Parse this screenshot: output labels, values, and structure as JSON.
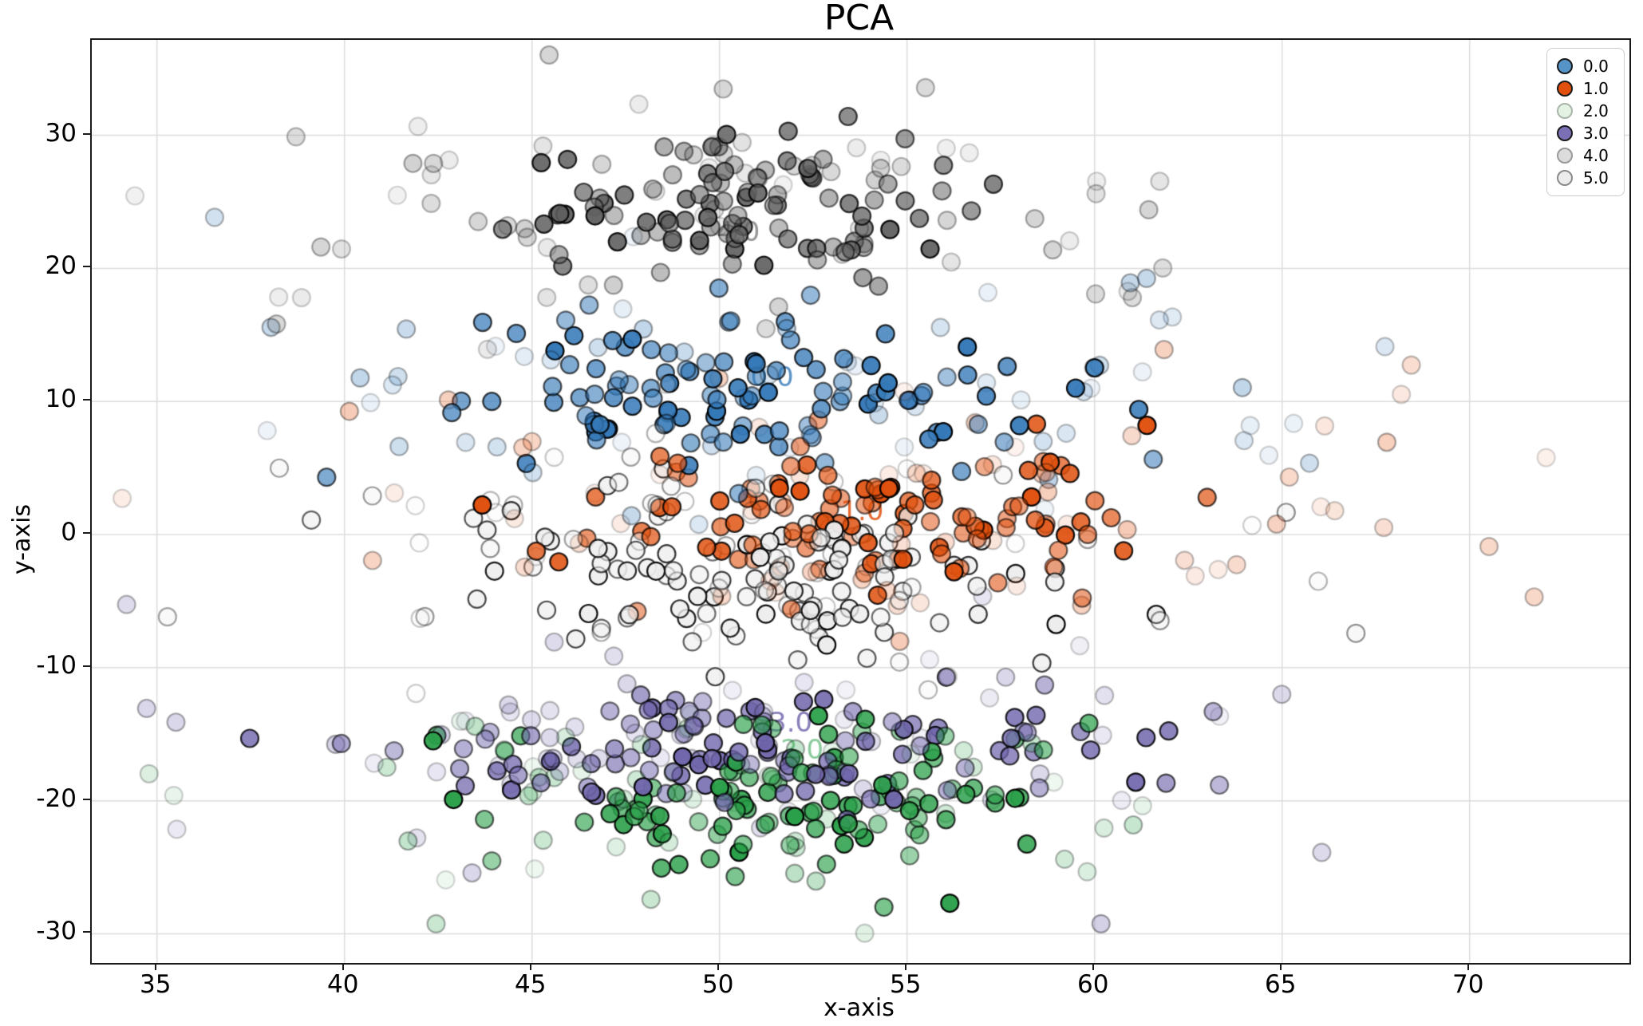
{
  "figure": {
    "title": "PCA"
  },
  "axes": {
    "xlabel": "x-axis",
    "ylabel": "y-axis"
  },
  "chart_data": {
    "type": "scatter",
    "title": "PCA",
    "xlabel": "x-axis",
    "ylabel": "y-axis",
    "xlim": [
      33.26,
      74.26
    ],
    "ylim": [
      -32.19,
      37.17
    ],
    "xticks": [
      35,
      40,
      45,
      50,
      55,
      60,
      65,
      70
    ],
    "yticks": [
      -30,
      -20,
      -10,
      0,
      10,
      20,
      30
    ],
    "grid": true,
    "grid_color": "#dcdcdc",
    "marker": {
      "radius": 11,
      "edge_color": "#000000",
      "edge_width": 2.2
    },
    "seed": 7,
    "legend": {
      "position": "upper right",
      "entries": [
        {
          "label": "0.0",
          "swatch": "#5693c6",
          "swatch_edge": "#1a1a1a"
        },
        {
          "label": "1.0",
          "swatch": "#e2500e",
          "swatch_edge": "#1a1a1a"
        },
        {
          "label": "2.0",
          "swatch": "#e3f2e3",
          "swatch_edge": "#a8b5a8"
        },
        {
          "label": "3.0",
          "swatch": "#7b70b5",
          "swatch_edge": "#1a1a1a"
        },
        {
          "label": "4.0",
          "swatch": "#dcdcdc",
          "swatch_edge": "#9a9a9a"
        },
        {
          "label": "5.0",
          "swatch": "#ececec",
          "swatch_edge": "#8a8a8a"
        }
      ]
    },
    "clusters": [
      {
        "label": "0.0",
        "color": "#3579b8",
        "annotation": {
          "text": "0.0",
          "x": 51.4,
          "y": 11.7,
          "color": "#3579b8",
          "alpha": 0.8
        },
        "core": {
          "n": 115,
          "cx": 51.0,
          "cy": 10.3,
          "sx": 4.2,
          "sy": 2.9,
          "amin": 0.45,
          "amax": 1.0
        },
        "halo": {
          "n": 60,
          "cx": 52.0,
          "cy": 10.8,
          "sx": 8.3,
          "sy": 4.8,
          "amin": 0.07,
          "amax": 0.32
        }
      },
      {
        "label": "1.0",
        "color": "#e0500e",
        "annotation": {
          "text": "1.0",
          "x": 53.8,
          "y": 1.6,
          "color": "#e0500e",
          "alpha": 0.85
        },
        "core": {
          "n": 110,
          "cx": 54.6,
          "cy": 1.3,
          "sx": 3.9,
          "sy": 3.1,
          "amin": 0.45,
          "amax": 1.0
        },
        "halo": {
          "n": 70,
          "cx": 56.5,
          "cy": 2.2,
          "sx": 10.5,
          "sy": 5.0,
          "amin": 0.07,
          "amax": 0.3
        }
      },
      {
        "label": "2.0",
        "color": "#2ba04a",
        "annotation": {
          "text": "2.0",
          "x": 52.2,
          "y": -16.3,
          "color": "#2ba04a",
          "alpha": 0.55
        },
        "core": {
          "n": 110,
          "cx": 52.4,
          "cy": -20.3,
          "sx": 3.7,
          "sy": 3.2,
          "amin": 0.45,
          "amax": 1.0
        },
        "halo": {
          "n": 55,
          "cx": 50.8,
          "cy": -19.0,
          "sx": 6.8,
          "sy": 4.6,
          "amin": 0.08,
          "amax": 0.32
        }
      },
      {
        "label": "3.0",
        "color": "#7066ac",
        "annotation": {
          "text": "3.0",
          "x": 51.9,
          "y": -14.3,
          "color": "#6a5fa8",
          "alpha": 0.8
        },
        "core": {
          "n": 115,
          "cx": 51.8,
          "cy": -16.4,
          "sx": 4.5,
          "sy": 2.4,
          "amin": 0.45,
          "amax": 1.0
        },
        "halo": {
          "n": 60,
          "cx": 51.0,
          "cy": -15.0,
          "sx": 7.8,
          "sy": 4.2,
          "amin": 0.08,
          "amax": 0.32
        }
      },
      {
        "label": "4.0",
        "color": "#5f5f5f",
        "annotation": {
          "text": "4.0",
          "x": 50.5,
          "y": 22.6,
          "color": "#7d7d7d",
          "alpha": 0.8
        },
        "core": {
          "n": 100,
          "cx": 50.8,
          "cy": 24.4,
          "sx": 3.1,
          "sy": 2.7,
          "amin": 0.4,
          "amax": 0.95
        },
        "halo": {
          "n": 70,
          "cx": 50.3,
          "cy": 24.5,
          "sx": 7.2,
          "sy": 5.2,
          "amin": 0.08,
          "amax": 0.3
        }
      },
      {
        "label": "5.0",
        "color": "#ededed",
        "annotation": {
          "text": "5.0",
          "x": 51.4,
          "y": -1.9,
          "color": "#d9d9d9",
          "alpha": 0.9
        },
        "core": {
          "n": 115,
          "cx": 51.2,
          "cy": -2.3,
          "sx": 4.4,
          "sy": 3.0,
          "amin": 0.5,
          "amax": 1.0
        },
        "halo": {
          "n": 50,
          "cx": 50.5,
          "cy": -2.5,
          "sx": 7.2,
          "sy": 5.0,
          "amin": 0.1,
          "amax": 0.4
        }
      }
    ]
  }
}
